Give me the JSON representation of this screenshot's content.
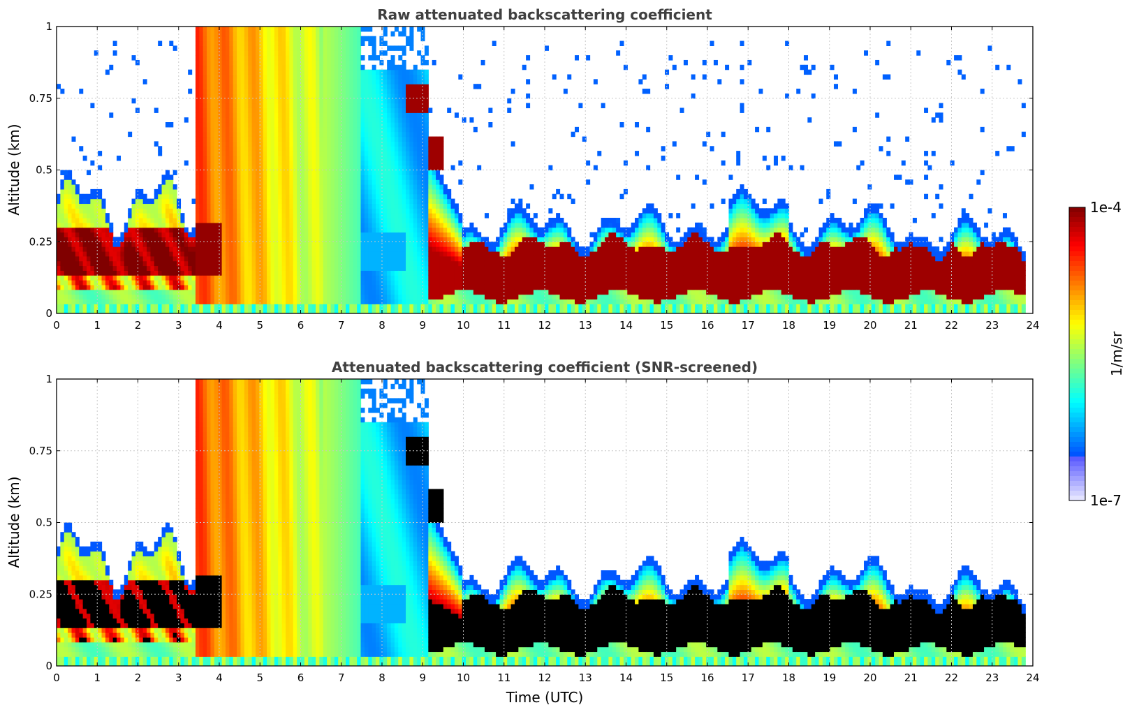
{
  "chart_data": [
    {
      "type": "heatmap",
      "title": "Raw attenuated backscattering coefficient",
      "xlabel": "",
      "ylabel": "Altitude (km)",
      "xlim": [
        0,
        24
      ],
      "ylim": [
        0,
        1
      ],
      "x_ticks": [
        "0",
        "1",
        "2",
        "3",
        "4",
        "5",
        "6",
        "7",
        "8",
        "9",
        "10",
        "11",
        "12",
        "13",
        "14",
        "15",
        "16",
        "17",
        "18",
        "19",
        "20",
        "21",
        "22",
        "23",
        "24"
      ],
      "y_ticks": [
        "0",
        "0.25",
        "0.5",
        "0.75",
        "1"
      ],
      "grid": true,
      "variant": "raw",
      "features": {
        "fog_layer": {
          "time": [
            0.0,
            4.05
          ],
          "top_km": 0.34,
          "bottom_km": 0.08
        },
        "rain_period": {
          "time": [
            3.4,
            7.5
          ],
          "altitude_km": [
            0.03,
            1.0
          ]
        },
        "stratus_deck": {
          "time": [
            9.1,
            23.8
          ],
          "top_km": 0.3,
          "base_km": 0.06
        },
        "ground_band_km": 0.03
      }
    },
    {
      "type": "heatmap",
      "title": "Attenuated backscattering coefficient (SNR-screened)",
      "xlabel": "Time (UTC)",
      "ylabel": "Altitude (km)",
      "xlim": [
        0,
        24
      ],
      "ylim": [
        0,
        1
      ],
      "x_ticks": [
        "0",
        "1",
        "2",
        "3",
        "4",
        "5",
        "6",
        "7",
        "8",
        "9",
        "10",
        "11",
        "12",
        "13",
        "14",
        "15",
        "16",
        "17",
        "18",
        "19",
        "20",
        "21",
        "22",
        "23",
        "24"
      ],
      "y_ticks": [
        "0",
        "0.25",
        "0.5",
        "0.75",
        "1"
      ],
      "grid": true,
      "variant": "screened",
      "features": {
        "fog_layer": {
          "time": [
            0.0,
            4.05
          ],
          "top_km": 0.34,
          "bottom_km": 0.08
        },
        "rain_period": {
          "time": [
            3.4,
            7.5
          ],
          "altitude_km": [
            0.03,
            1.0
          ]
        },
        "stratus_deck": {
          "time": [
            9.1,
            23.8
          ],
          "top_km": 0.3,
          "base_km": 0.06
        },
        "saturated_color": "#000000"
      }
    }
  ],
  "colorbar": {
    "label": "1/m/sr",
    "max_label": "1e-4",
    "min_label": "1e-7",
    "colormap": "jet",
    "scale": "log",
    "range": [
      1e-07,
      0.0001
    ]
  }
}
